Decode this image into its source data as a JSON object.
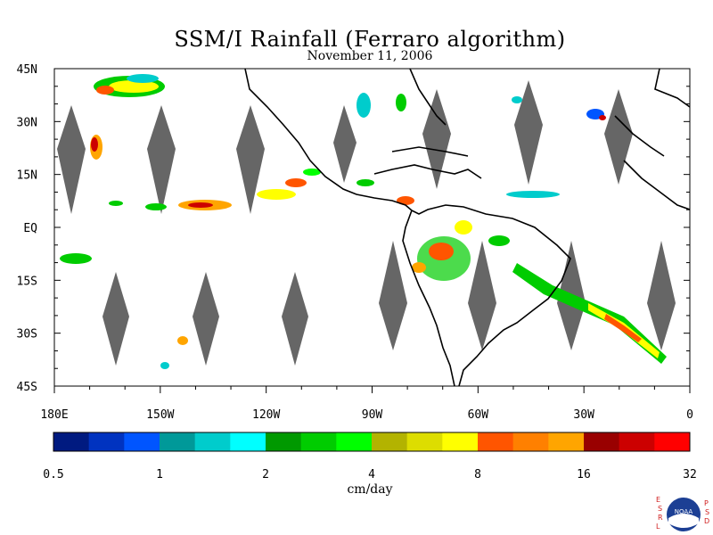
{
  "title": "SSM/I Rainfall (Ferraro algorithm)",
  "date": "November 11, 2006",
  "lat_labels": [
    "45N",
    "30N",
    "15N",
    "EQ",
    "15S",
    "30S",
    "45S"
  ],
  "lon_labels": [
    "180E",
    "150W",
    "120W",
    "90W",
    "60W",
    "30W",
    "0"
  ],
  "colorbar": {
    "colors": [
      "#001a80",
      "#0033c0",
      "#0055ff",
      "#009999",
      "#00cccc",
      "#00ffff",
      "#009900",
      "#00cc00",
      "#00ff00",
      "#b3b300",
      "#dddd00",
      "#ffff00",
      "#ff5500",
      "#ff8000",
      "#ffa500",
      "#990000",
      "#cc0000",
      "#ff0000"
    ],
    "tick_labels": [
      "0.5",
      "1",
      "2",
      "4",
      "8",
      "16",
      "32"
    ],
    "units": "cm/day"
  },
  "logo": {
    "left_letters": [
      "E",
      "S",
      "R",
      "L"
    ],
    "right_letters": [
      "P",
      "S",
      "D"
    ],
    "badge_text": "NOAA"
  },
  "colors": {
    "land_outline": "#000000",
    "missing_swath": "#666666",
    "background": "#ffffff"
  }
}
